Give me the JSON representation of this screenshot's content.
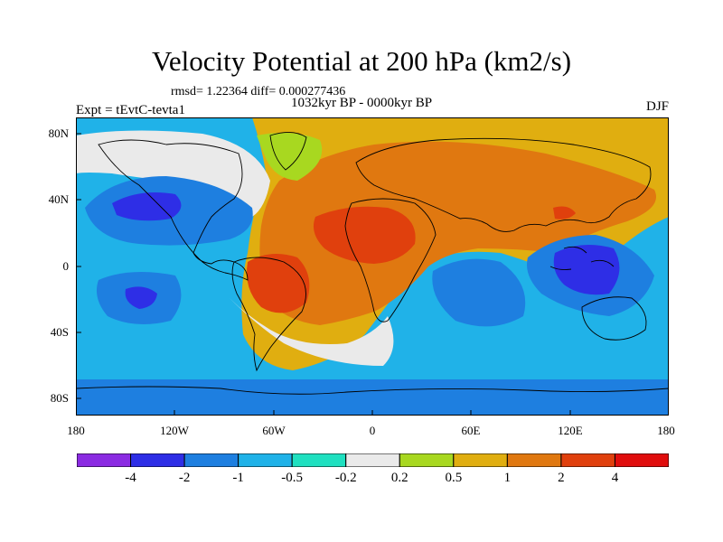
{
  "header": {
    "title": "Velocity Potential at 200 hPa (km2/s)",
    "stats": "rmsd= 1.22364 diff= 0.000277436",
    "period": "1032kyr BP - 0000kyr BP",
    "expt": "Expt = tEvtC-tevta1",
    "season": "DJF"
  },
  "axes": {
    "lat_labels": [
      "80N",
      "40N",
      "0",
      "40S",
      "80S"
    ],
    "lon_labels": [
      "180",
      "120W",
      "60W",
      "0",
      "60E",
      "120E",
      "180"
    ]
  },
  "colorbar": {
    "colors": [
      "#8B2BE2",
      "#2E2EE6",
      "#1E7FE0",
      "#20B2E8",
      "#1FE0C0",
      "#EAEAEA",
      "#A8D820",
      "#E0AE10",
      "#E07810",
      "#E0400D",
      "#E00D0D"
    ],
    "labels": [
      "-4",
      "-2",
      "-1",
      "-0.5",
      "-0.2",
      "0.2",
      "0.5",
      "1",
      "2",
      "4"
    ]
  },
  "chart_data": {
    "type": "heatmap",
    "title": "Velocity Potential at 200 hPa (km2/s)",
    "variable": "velocity potential difference",
    "units": "km2/s",
    "levels": [
      -4,
      -2,
      -1,
      -0.5,
      -0.2,
      0.2,
      0.5,
      1,
      2,
      4
    ],
    "x_range": [
      -180,
      180
    ],
    "y_range": [
      -90,
      90
    ],
    "features": [
      {
        "region": "North Pacific",
        "lon": -142,
        "lat": 35,
        "value": -2.5
      },
      {
        "region": "South Pacific",
        "lon": -137,
        "lat": -22,
        "value": -2.1
      },
      {
        "region": "Maritime Continent / Western Pacific",
        "lon": 137,
        "lat": -5,
        "value": -2.6
      },
      {
        "region": "South America",
        "lon": -55,
        "lat": -8,
        "value": 2.6
      },
      {
        "region": "North Africa",
        "lon": 5,
        "lat": 25,
        "value": 2.4
      },
      {
        "region": "Eurasia",
        "lon": 65,
        "lat": 50,
        "value": 1.7
      },
      {
        "region": "Arctic / North America",
        "lon": -100,
        "lat": 70,
        "value": 0.0
      },
      {
        "region": "Indian Ocean",
        "lon": 70,
        "lat": -20,
        "value": -1.2
      },
      {
        "region": "Southern Ocean",
        "lon": 0,
        "lat": -75,
        "value": -0.7
      }
    ]
  }
}
